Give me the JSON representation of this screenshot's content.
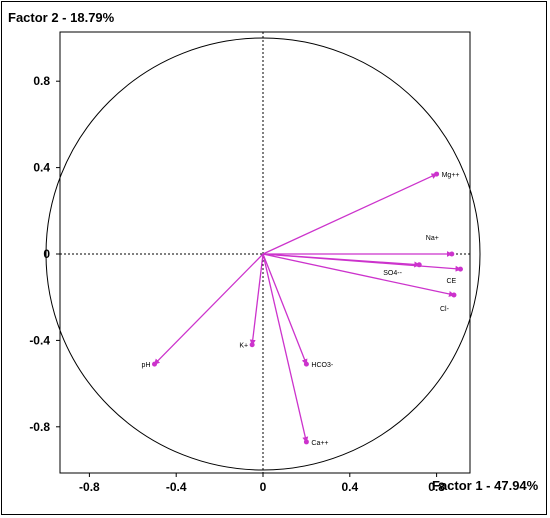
{
  "chart_data": {
    "type": "scatter",
    "subtype": "pca-correlation-circle",
    "xlabel": "Factor 1 - 47.94%",
    "ylabel": "Factor 2 - 18.79%",
    "xlim": [
      -1.0,
      1.0
    ],
    "ylim": [
      -1.0,
      1.0
    ],
    "x_ticks": [
      "-0.8",
      "-0.4",
      "0",
      "0.4",
      "0.8"
    ],
    "y_ticks": [
      "0.8",
      "0.4",
      "0",
      "-0.4",
      "-0.8"
    ],
    "unit_circle": true,
    "zero_lines": "dotted",
    "vector_color": "#cc33cc",
    "variables": [
      {
        "name": "Mg++",
        "x": 0.8,
        "y": 0.37
      },
      {
        "name": "Na+",
        "x": 0.87,
        "y": 0.0
      },
      {
        "name": "SO4--",
        "x": 0.72,
        "y": -0.05
      },
      {
        "name": "CE",
        "x": 0.91,
        "y": -0.07
      },
      {
        "name": "Cl-",
        "x": 0.88,
        "y": -0.19
      },
      {
        "name": "K+",
        "x": -0.05,
        "y": -0.42
      },
      {
        "name": "pH",
        "x": -0.5,
        "y": -0.51
      },
      {
        "name": "HCO3-",
        "x": 0.2,
        "y": -0.51
      },
      {
        "name": "Ca++",
        "x": 0.2,
        "y": -0.87
      }
    ]
  }
}
